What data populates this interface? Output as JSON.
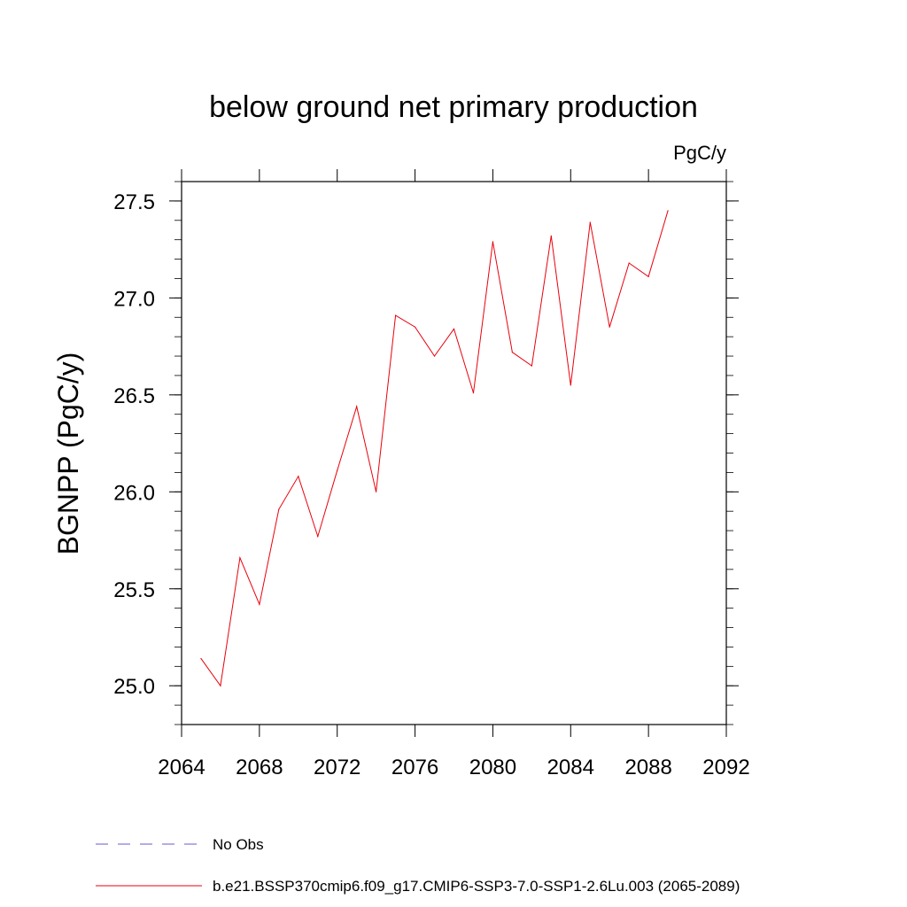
{
  "chart_data": {
    "type": "line",
    "title": "below ground net primary production",
    "units_label": "PgC/y",
    "xlabel": "",
    "ylabel": "BGNPP  (PgC/y)",
    "xlim": [
      2064,
      2092
    ],
    "ylim": [
      24.8,
      27.6
    ],
    "x_ticks": [
      2064,
      2068,
      2072,
      2076,
      2080,
      2084,
      2088,
      2092
    ],
    "y_ticks": [
      25.0,
      25.5,
      26.0,
      26.5,
      27.0,
      27.5
    ],
    "x_tick_labels": [
      "2064",
      "2068",
      "2072",
      "2076",
      "2080",
      "2084",
      "2088",
      "2092"
    ],
    "y_tick_labels": [
      "25.0",
      "25.5",
      "26.0",
      "26.5",
      "27.0",
      "27.5"
    ],
    "grid": false,
    "legend_position": "bottom",
    "series": [
      {
        "name": "b.e21.BSSP370cmip6.f09_g17.CMIP6-SSP3-7.0-SSP1-2.6Lu.003 (2065-2089)",
        "color": "#e8000b",
        "style": "solid",
        "x": [
          2065,
          2066,
          2067,
          2068,
          2069,
          2070,
          2071,
          2072,
          2073,
          2074,
          2075,
          2076,
          2077,
          2078,
          2079,
          2080,
          2081,
          2082,
          2083,
          2084,
          2085,
          2086,
          2087,
          2088,
          2089
        ],
        "values": [
          25.14,
          25.0,
          25.66,
          25.42,
          25.91,
          26.08,
          25.77,
          26.11,
          26.44,
          26.0,
          26.91,
          26.85,
          26.7,
          26.84,
          26.51,
          27.29,
          26.72,
          26.65,
          27.32,
          26.55,
          27.39,
          26.85,
          27.18,
          27.11,
          27.45
        ]
      }
    ],
    "legend": [
      {
        "label": "No Obs",
        "color": "#6a5acd",
        "style": "dashed"
      },
      {
        "label": "b.e21.BSSP370cmip6.f09_g17.CMIP6-SSP3-7.0-SSP1-2.6Lu.003 (2065-2089)",
        "color": "#e8000b",
        "style": "solid"
      }
    ]
  }
}
